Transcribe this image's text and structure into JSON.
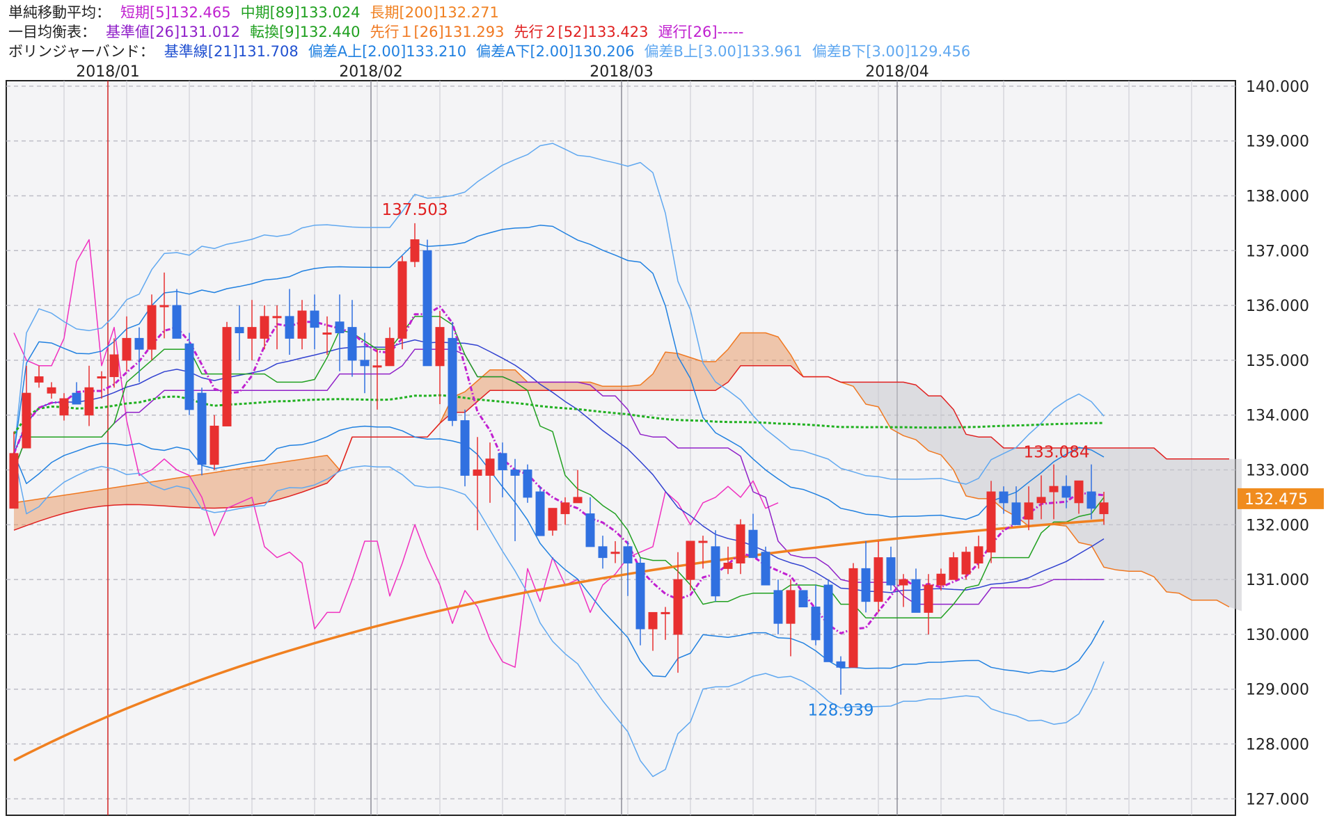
{
  "legend": {
    "sma": {
      "title": "単純移動平均：",
      "short": "短期[5]132.465",
      "mid": "中期[89]133.024",
      "long": "長期[200]132.271"
    },
    "ichimoku": {
      "title": "一目均衡表：",
      "kijun": "基準値[26]131.012",
      "tenkan": "転換[9]132.440",
      "senkou1": "先行１[26]131.293",
      "senkou2": "先行２[52]133.423",
      "chikou": "遅行[26]-----"
    },
    "bollinger": {
      "title": "ボリンジャーバンド：",
      "base": "基準線[21]131.708",
      "upper2": "偏差A上[2.00]133.210",
      "lower2": "偏差A下[2.00]130.206",
      "upper3": "偏差B上[3.00]133.961",
      "lower3": "偏差B下[3.00]129.456"
    }
  },
  "colors": {
    "sma_short": "#c020d0",
    "sma_mid": "#20b020",
    "sma_long": "#f08020",
    "kijun": "#9020c8",
    "tenkan": "#20a020",
    "senkou1": "#f07820",
    "senkou2": "#e02020",
    "bb_base": "#3040d0",
    "bb_2": "#2080e0",
    "bb_3": "#60a8f0",
    "chikou": "#f030c0",
    "up": "#e83030",
    "down": "#3070e0",
    "price_tag": "#f08c1e"
  },
  "chart_data": {
    "type": "candlestick",
    "x_labels": [
      "2018/01",
      "2018/02",
      "2018/03",
      "2018/04"
    ],
    "yaxis": {
      "range": [
        126.7,
        140.1
      ],
      "ticks": [
        "140.000",
        "139.000",
        "138.000",
        "137.000",
        "136.000",
        "135.000",
        "134.000",
        "133.000",
        "132.000",
        "131.000",
        "130.000",
        "129.000",
        "128.000",
        "127.000"
      ]
    },
    "current_price": "132.475",
    "annotations": {
      "high": "137.503",
      "low": "128.939",
      "recent_high": "133.084"
    },
    "candles": [
      {
        "o": 132.3,
        "h": 133.7,
        "l": 132.3,
        "c": 133.3
      },
      {
        "o": 133.4,
        "h": 134.9,
        "l": 133.4,
        "c": 134.4
      },
      {
        "o": 134.6,
        "h": 134.9,
        "l": 134.5,
        "c": 134.7
      },
      {
        "o": 134.4,
        "h": 134.6,
        "l": 134.3,
        "c": 134.5
      },
      {
        "o": 134.0,
        "h": 134.4,
        "l": 133.9,
        "c": 134.3
      },
      {
        "o": 134.4,
        "h": 134.6,
        "l": 134.2,
        "c": 134.2
      },
      {
        "o": 134.0,
        "h": 134.9,
        "l": 133.8,
        "c": 134.5
      },
      {
        "o": 134.7,
        "h": 134.8,
        "l": 134.3,
        "c": 134.7
      },
      {
        "o": 134.7,
        "h": 135.4,
        "l": 134.5,
        "c": 135.1
      },
      {
        "o": 135.0,
        "h": 135.8,
        "l": 134.8,
        "c": 135.4
      },
      {
        "o": 135.4,
        "h": 135.6,
        "l": 134.6,
        "c": 135.2
      },
      {
        "o": 135.2,
        "h": 136.2,
        "l": 135.0,
        "c": 136.0
      },
      {
        "o": 136.0,
        "h": 136.6,
        "l": 135.4,
        "c": 136.0
      },
      {
        "o": 136.0,
        "h": 136.3,
        "l": 135.4,
        "c": 135.4
      },
      {
        "o": 135.3,
        "h": 135.5,
        "l": 134.0,
        "c": 134.1
      },
      {
        "o": 134.4,
        "h": 134.5,
        "l": 132.9,
        "c": 133.1
      },
      {
        "o": 133.1,
        "h": 134.0,
        "l": 133.0,
        "c": 133.8
      },
      {
        "o": 133.8,
        "h": 135.7,
        "l": 133.8,
        "c": 135.6
      },
      {
        "o": 135.6,
        "h": 136.0,
        "l": 135.0,
        "c": 135.5
      },
      {
        "o": 135.4,
        "h": 136.1,
        "l": 135.0,
        "c": 135.6
      },
      {
        "o": 135.4,
        "h": 136.0,
        "l": 135.2,
        "c": 135.8
      },
      {
        "o": 135.8,
        "h": 136.0,
        "l": 135.2,
        "c": 135.8
      },
      {
        "o": 135.8,
        "h": 136.3,
        "l": 135.1,
        "c": 135.4
      },
      {
        "o": 135.4,
        "h": 136.1,
        "l": 135.2,
        "c": 135.9
      },
      {
        "o": 135.9,
        "h": 136.2,
        "l": 135.2,
        "c": 135.6
      },
      {
        "o": 135.5,
        "h": 135.8,
        "l": 135.1,
        "c": 135.5
      },
      {
        "o": 135.7,
        "h": 136.2,
        "l": 134.8,
        "c": 135.5
      },
      {
        "o": 135.6,
        "h": 136.1,
        "l": 134.7,
        "c": 135.0
      },
      {
        "o": 135.0,
        "h": 135.5,
        "l": 134.4,
        "c": 134.9
      },
      {
        "o": 134.9,
        "h": 135.2,
        "l": 134.1,
        "c": 134.9
      },
      {
        "o": 134.9,
        "h": 135.6,
        "l": 134.9,
        "c": 135.4
      },
      {
        "o": 135.4,
        "h": 136.9,
        "l": 135.2,
        "c": 136.8
      },
      {
        "o": 136.8,
        "h": 137.5,
        "l": 136.7,
        "c": 137.2
      },
      {
        "o": 137.0,
        "h": 137.2,
        "l": 134.9,
        "c": 134.9
      },
      {
        "o": 134.9,
        "h": 135.9,
        "l": 134.2,
        "c": 135.6
      },
      {
        "o": 135.4,
        "h": 135.7,
        "l": 133.8,
        "c": 133.9
      },
      {
        "o": 133.9,
        "h": 134.1,
        "l": 132.7,
        "c": 132.9
      },
      {
        "o": 132.9,
        "h": 133.6,
        "l": 131.9,
        "c": 133.0
      },
      {
        "o": 132.9,
        "h": 133.5,
        "l": 132.4,
        "c": 133.2
      },
      {
        "o": 133.3,
        "h": 133.5,
        "l": 132.5,
        "c": 133.0
      },
      {
        "o": 133.0,
        "h": 133.2,
        "l": 131.7,
        "c": 132.9
      },
      {
        "o": 133.0,
        "h": 133.1,
        "l": 132.4,
        "c": 132.5
      },
      {
        "o": 132.6,
        "h": 132.7,
        "l": 131.8,
        "c": 131.8
      },
      {
        "o": 131.9,
        "h": 132.3,
        "l": 131.8,
        "c": 132.3
      },
      {
        "o": 132.2,
        "h": 132.5,
        "l": 132.0,
        "c": 132.4
      },
      {
        "o": 132.4,
        "h": 133.0,
        "l": 132.4,
        "c": 132.5
      },
      {
        "o": 132.2,
        "h": 132.5,
        "l": 131.6,
        "c": 131.6
      },
      {
        "o": 131.6,
        "h": 131.8,
        "l": 131.2,
        "c": 131.4
      },
      {
        "o": 131.5,
        "h": 131.7,
        "l": 131.3,
        "c": 131.5
      },
      {
        "o": 131.6,
        "h": 131.7,
        "l": 130.7,
        "c": 131.3
      },
      {
        "o": 131.3,
        "h": 131.4,
        "l": 129.8,
        "c": 130.1
      },
      {
        "o": 130.1,
        "h": 130.4,
        "l": 129.7,
        "c": 130.4
      },
      {
        "o": 130.4,
        "h": 130.5,
        "l": 129.9,
        "c": 130.4
      },
      {
        "o": 130.0,
        "h": 131.5,
        "l": 129.3,
        "c": 131.0
      },
      {
        "o": 131.0,
        "h": 131.7,
        "l": 130.8,
        "c": 131.7
      },
      {
        "o": 131.7,
        "h": 131.8,
        "l": 131.2,
        "c": 131.7
      },
      {
        "o": 131.6,
        "h": 131.9,
        "l": 130.6,
        "c": 130.7
      },
      {
        "o": 131.2,
        "h": 131.6,
        "l": 131.1,
        "c": 131.3
      },
      {
        "o": 131.3,
        "h": 132.1,
        "l": 131.1,
        "c": 132.0
      },
      {
        "o": 131.9,
        "h": 132.2,
        "l": 131.5,
        "c": 131.4
      },
      {
        "o": 131.5,
        "h": 131.6,
        "l": 130.9,
        "c": 130.9
      },
      {
        "o": 130.8,
        "h": 131.0,
        "l": 130.0,
        "c": 130.2
      },
      {
        "o": 130.2,
        "h": 131.0,
        "l": 129.6,
        "c": 130.8
      },
      {
        "o": 130.8,
        "h": 130.8,
        "l": 130.5,
        "c": 130.5
      },
      {
        "o": 130.5,
        "h": 130.9,
        "l": 129.8,
        "c": 129.9
      },
      {
        "o": 130.9,
        "h": 131.0,
        "l": 129.5,
        "c": 129.5
      },
      {
        "o": 129.5,
        "h": 129.6,
        "l": 128.9,
        "c": 129.4
      },
      {
        "o": 129.4,
        "h": 131.3,
        "l": 129.4,
        "c": 131.2
      },
      {
        "o": 131.2,
        "h": 131.7,
        "l": 130.4,
        "c": 130.6
      },
      {
        "o": 130.6,
        "h": 131.7,
        "l": 130.4,
        "c": 131.4
      },
      {
        "o": 131.4,
        "h": 131.6,
        "l": 130.8,
        "c": 130.9
      },
      {
        "o": 130.9,
        "h": 131.1,
        "l": 130.5,
        "c": 131.0
      },
      {
        "o": 131.0,
        "h": 131.2,
        "l": 130.4,
        "c": 130.4
      },
      {
        "o": 130.4,
        "h": 131.1,
        "l": 130.0,
        "c": 130.9
      },
      {
        "o": 130.9,
        "h": 131.2,
        "l": 130.8,
        "c": 131.1
      },
      {
        "o": 131.0,
        "h": 131.5,
        "l": 131.0,
        "c": 131.4
      },
      {
        "o": 131.1,
        "h": 131.6,
        "l": 131.0,
        "c": 131.5
      },
      {
        "o": 131.3,
        "h": 131.8,
        "l": 131.2,
        "c": 131.6
      },
      {
        "o": 131.5,
        "h": 132.8,
        "l": 131.3,
        "c": 132.6
      },
      {
        "o": 132.6,
        "h": 132.7,
        "l": 132.2,
        "c": 132.4
      },
      {
        "o": 132.4,
        "h": 132.7,
        "l": 132.0,
        "c": 132.0
      },
      {
        "o": 132.1,
        "h": 132.7,
        "l": 131.9,
        "c": 132.4
      },
      {
        "o": 132.4,
        "h": 132.9,
        "l": 132.1,
        "c": 132.5
      },
      {
        "o": 132.6,
        "h": 133.1,
        "l": 132.1,
        "c": 132.7
      },
      {
        "o": 132.7,
        "h": 132.9,
        "l": 132.3,
        "c": 132.5
      },
      {
        "o": 132.4,
        "h": 132.8,
        "l": 132.2,
        "c": 132.8
      },
      {
        "o": 132.6,
        "h": 133.1,
        "l": 132.1,
        "c": 132.3
      },
      {
        "o": 132.2,
        "h": 132.6,
        "l": 132.0,
        "c": 132.4
      }
    ]
  }
}
